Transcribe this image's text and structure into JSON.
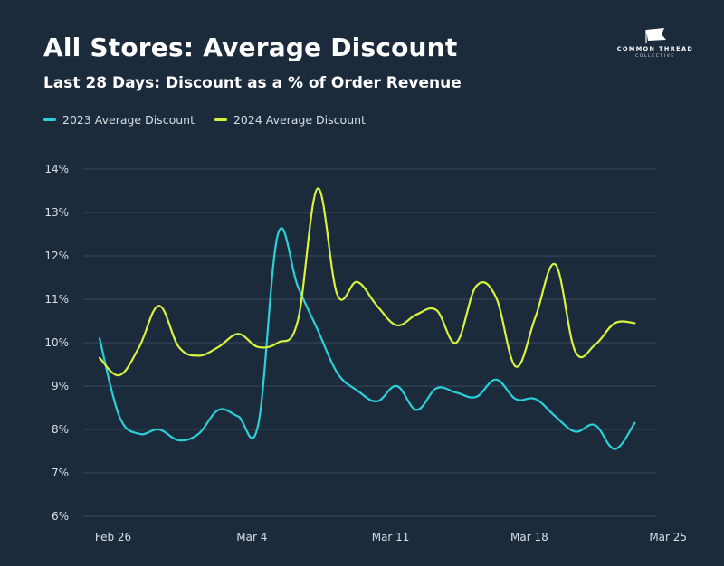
{
  "header": {
    "title": "All Stores: Average Discount",
    "subtitle": "Last 28 Days: Discount as a % of Order Revenue"
  },
  "logo": {
    "line1": "COMMON THREAD",
    "line2": "COLLECTIVE"
  },
  "chart_data": {
    "type": "line",
    "title": "All Stores: Average Discount",
    "subtitle": "Last 28 Days: Discount as a % of Order Revenue",
    "xlabel": "",
    "ylabel": "",
    "ylim": [
      6,
      14
    ],
    "yticks": [
      "6%",
      "7%",
      "8%",
      "9%",
      "10%",
      "11%",
      "12%",
      "13%",
      "14%"
    ],
    "xticks": [
      {
        "label": "Feb 26",
        "day": 0
      },
      {
        "label": "Mar 4",
        "day": 7
      },
      {
        "label": "Mar 11",
        "day": 14
      },
      {
        "label": "Mar 18",
        "day": 21
      },
      {
        "label": "Mar 25",
        "day": 28
      }
    ],
    "grid": true,
    "legend_position": "top-left",
    "series": [
      {
        "name": "2023 Average Discount",
        "color": "#2bd0d8",
        "values": [
          10.1,
          8.3,
          7.9,
          8.0,
          7.75,
          7.9,
          8.45,
          8.3,
          8.1,
          12.5,
          11.3,
          10.3,
          9.3,
          8.9,
          8.65,
          9.0,
          8.45,
          8.95,
          8.85,
          8.75,
          9.15,
          8.7,
          8.7,
          8.3,
          7.95,
          8.1,
          7.55,
          8.15
        ]
      },
      {
        "name": "2024 Average Discount",
        "color": "#d8f23e",
        "values": [
          9.65,
          9.25,
          9.9,
          10.85,
          9.9,
          9.7,
          9.9,
          10.2,
          9.9,
          10.0,
          10.5,
          13.55,
          11.1,
          11.4,
          10.85,
          10.4,
          10.65,
          10.75,
          10.0,
          11.3,
          11.05,
          9.45,
          10.6,
          11.8,
          9.8,
          9.95,
          10.45,
          10.45
        ]
      }
    ]
  }
}
